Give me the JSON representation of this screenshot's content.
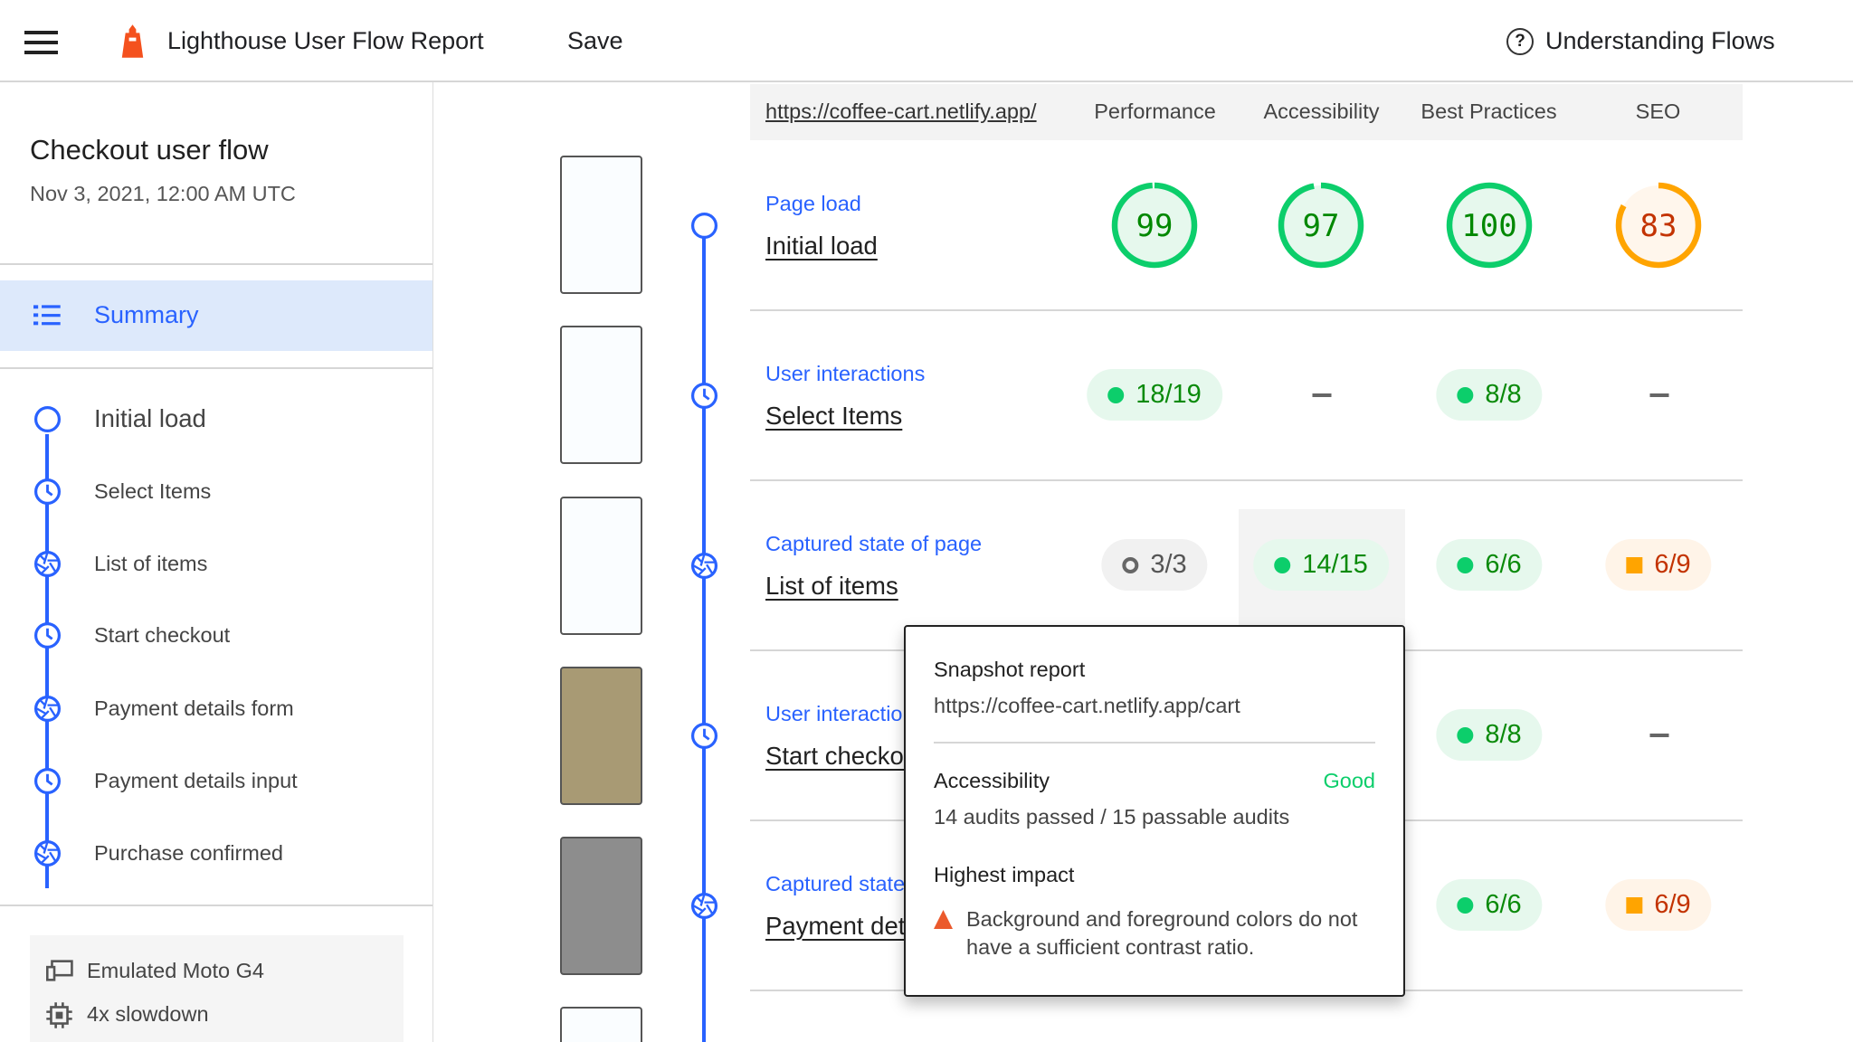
{
  "header": {
    "title": "Lighthouse User Flow Report",
    "save": "Save",
    "help": "Understanding Flows"
  },
  "sidebar": {
    "title": "Checkout user flow",
    "date": "Nov 3, 2021, 12:00 AM UTC",
    "summary": "Summary",
    "steps": [
      {
        "label": "Initial load",
        "type": "navigation"
      },
      {
        "label": "Select Items",
        "type": "timespan"
      },
      {
        "label": "List of items",
        "type": "snapshot"
      },
      {
        "label": "Start checkout",
        "type": "timespan"
      },
      {
        "label": "Payment details form",
        "type": "snapshot"
      },
      {
        "label": "Payment details input",
        "type": "timespan"
      },
      {
        "label": "Purchase confirmed",
        "type": "snapshot"
      }
    ],
    "settings": [
      "Emulated Moto G4",
      "4x slowdown"
    ]
  },
  "table": {
    "url": "https://coffee-cart.netlify.app/",
    "columns": [
      "Performance",
      "Accessibility",
      "Best Practices",
      "SEO"
    ],
    "rows": [
      {
        "label": "Page load",
        "name": "Initial load",
        "scores": [
          "99",
          "97",
          "100",
          "83"
        ]
      },
      {
        "label": "User interactions",
        "name": "Select Items",
        "scores": [
          "18/19",
          "–",
          "8/8",
          "–"
        ]
      },
      {
        "label": "Captured state of page",
        "name": "List of items",
        "scores": [
          "3/3",
          "14/15",
          "6/6",
          "6/9"
        ]
      },
      {
        "label": "User interactions",
        "name": "Start checkout",
        "scores": [
          "",
          "",
          "8/8",
          "–"
        ]
      },
      {
        "label": "Captured state of page",
        "name": "Payment details form",
        "scores": [
          "",
          "",
          "6/6",
          "6/9"
        ]
      }
    ]
  },
  "tooltip": {
    "title": "Snapshot report",
    "url": "https://coffee-cart.netlify.app/cart",
    "category": "Accessibility",
    "rating": "Good",
    "audits": "14 audits passed / 15 passable audits",
    "impact_title": "Highest impact",
    "impact_text": "Background and foreground colors do not have a sufficient contrast ratio."
  },
  "colors": {
    "accent": "#2962ff",
    "pass": "#0cce6b",
    "average": "#ffa400",
    "fail": "#ff4e42"
  }
}
